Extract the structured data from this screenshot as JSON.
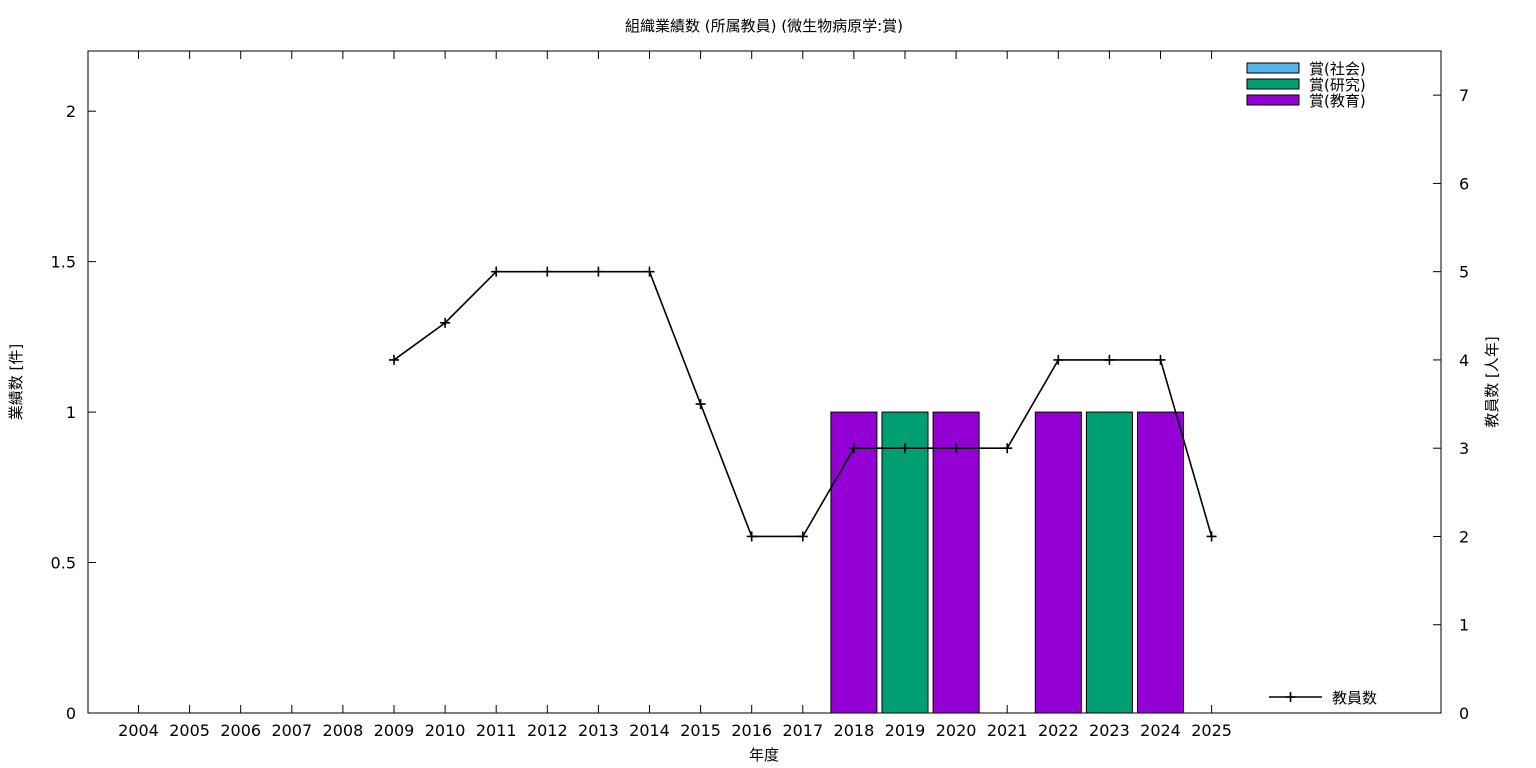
{
  "chart_data": {
    "type": "bar",
    "title": "組織業績数 (所属教員) (微生物病原学:賞)",
    "xlabel": "年度",
    "ylabel": "業績数 [件]",
    "y2label": "教員数 [人年]",
    "ylim": [
      0,
      2.2
    ],
    "y2lim": [
      0,
      7.5
    ],
    "yticks": [
      "0",
      "0.5",
      "1",
      "1.5",
      "2"
    ],
    "y2ticks": [
      "0",
      "1",
      "2",
      "3",
      "4",
      "5",
      "6",
      "7"
    ],
    "categories": [
      "2004",
      "2005",
      "2006",
      "2007",
      "2008",
      "2009",
      "2010",
      "2011",
      "2012",
      "2013",
      "2014",
      "2015",
      "2016",
      "2017",
      "2018",
      "2019",
      "2020",
      "2021",
      "2022",
      "2023",
      "2024",
      "2025"
    ],
    "series": [
      {
        "name": "賞(社会)",
        "color": "#56b4e9",
        "values": [
          0,
          0,
          0,
          0,
          0,
          0,
          0,
          0,
          0,
          0,
          0,
          0,
          0,
          0,
          0,
          0,
          0,
          0,
          0,
          0,
          0,
          0
        ]
      },
      {
        "name": "賞(研究)",
        "color": "#009e73",
        "values": [
          0,
          0,
          0,
          0,
          0,
          0,
          0,
          0,
          0,
          0,
          0,
          0,
          0,
          0,
          0,
          1,
          0,
          0,
          0,
          1,
          0,
          0
        ]
      },
      {
        "name": "賞(教育)",
        "color": "#9400d3",
        "values": [
          0,
          0,
          0,
          0,
          0,
          0,
          0,
          0,
          0,
          0,
          0,
          0,
          0,
          0,
          1,
          0,
          1,
          0,
          1,
          0,
          1,
          0
        ]
      }
    ],
    "line": {
      "name": "教員数",
      "axis": "right",
      "color": "#000000",
      "values": [
        null,
        null,
        null,
        null,
        null,
        4,
        4.42,
        5,
        5,
        5,
        5,
        3.5,
        2,
        2,
        3,
        3,
        3,
        3,
        4,
        4,
        4,
        2
      ]
    },
    "legend": "top-right (bars), bottom-right (line)",
    "grid": false
  }
}
